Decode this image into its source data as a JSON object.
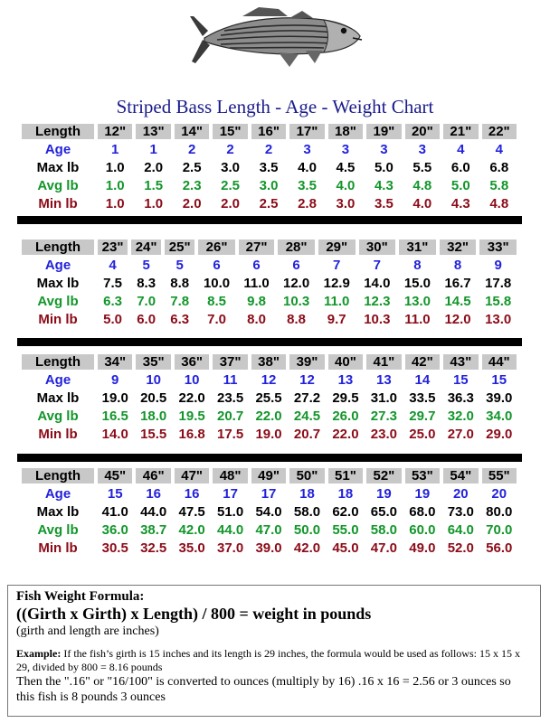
{
  "title": "Striped Bass Length - Age - Weight Chart",
  "row_labels": {
    "length": "Length",
    "age": "Age",
    "max": "Max lb",
    "avg": "Avg lb",
    "min": "Min lb"
  },
  "colors": {
    "age": "#2222dd",
    "max": "#000000",
    "avg": "#12962a",
    "min": "#8b0b18",
    "header_bg": "#c8c8c8"
  },
  "blocks": [
    {
      "length": [
        "12\"",
        "13\"",
        "14\"",
        "15\"",
        "16\"",
        "17\"",
        "18\"",
        "19\"",
        "20\"",
        "21\"",
        "22\""
      ],
      "age": [
        "1",
        "1",
        "2",
        "2",
        "2",
        "3",
        "3",
        "3",
        "3",
        "4",
        "4"
      ],
      "max": [
        "1.0",
        "2.0",
        "2.5",
        "3.0",
        "3.5",
        "4.0",
        "4.5",
        "5.0",
        "5.5",
        "6.0",
        "6.8"
      ],
      "avg": [
        "1.0",
        "1.5",
        "2.3",
        "2.5",
        "3.0",
        "3.5",
        "4.0",
        "4.3",
        "4.8",
        "5.0",
        "5.8"
      ],
      "min": [
        "1.0",
        "1.0",
        "2.0",
        "2.0",
        "2.5",
        "2.8",
        "3.0",
        "3.5",
        "4.0",
        "4.3",
        "4.8"
      ]
    },
    {
      "length": [
        "23\"",
        "24\"",
        "25\"",
        "26\"",
        "27\"",
        "28\"",
        "29\"",
        "30\"",
        "31\"",
        "32\"",
        "33\""
      ],
      "age": [
        "4",
        "5",
        "5",
        "6",
        "6",
        "6",
        "7",
        "7",
        "8",
        "8",
        "9"
      ],
      "max": [
        "7.5",
        "8.3",
        "8.8",
        "10.0",
        "11.0",
        "12.0",
        "12.9",
        "14.0",
        "15.0",
        "16.7",
        "17.8"
      ],
      "avg": [
        "6.3",
        "7.0",
        "7.8",
        "8.5",
        "9.8",
        "10.3",
        "11.0",
        "12.3",
        "13.0",
        "14.5",
        "15.8"
      ],
      "min": [
        "5.0",
        "6.0",
        "6.3",
        "7.0",
        "8.0",
        "8.8",
        "9.7",
        "10.3",
        "11.0",
        "12.0",
        "13.0"
      ]
    },
    {
      "length": [
        "34\"",
        "35\"",
        "36\"",
        "37\"",
        "38\"",
        "39\"",
        "40\"",
        "41\"",
        "42\"",
        "43\"",
        "44\""
      ],
      "age": [
        "9",
        "10",
        "10",
        "11",
        "12",
        "12",
        "13",
        "13",
        "14",
        "15",
        "15"
      ],
      "max": [
        "19.0",
        "20.5",
        "22.0",
        "23.5",
        "25.5",
        "27.2",
        "29.5",
        "31.0",
        "33.5",
        "36.3",
        "39.0"
      ],
      "avg": [
        "16.5",
        "18.0",
        "19.5",
        "20.7",
        "22.0",
        "24.5",
        "26.0",
        "27.3",
        "29.7",
        "32.0",
        "34.0"
      ],
      "min": [
        "14.0",
        "15.5",
        "16.8",
        "17.5",
        "19.0",
        "20.7",
        "22.0",
        "23.0",
        "25.0",
        "27.0",
        "29.0"
      ]
    },
    {
      "length": [
        "45\"",
        "46\"",
        "47\"",
        "48\"",
        "49\"",
        "50\"",
        "51\"",
        "52\"",
        "53\"",
        "54\"",
        "55\""
      ],
      "age": [
        "15",
        "16",
        "16",
        "17",
        "17",
        "18",
        "18",
        "19",
        "19",
        "20",
        "20"
      ],
      "max": [
        "41.0",
        "44.0",
        "47.5",
        "51.0",
        "54.0",
        "58.0",
        "62.0",
        "65.0",
        "68.0",
        "73.0",
        "80.0"
      ],
      "avg": [
        "36.0",
        "38.7",
        "42.0",
        "44.0",
        "47.0",
        "50.0",
        "55.0",
        "58.0",
        "60.0",
        "64.0",
        "70.0"
      ],
      "min": [
        "30.5",
        "32.5",
        "35.0",
        "37.0",
        "39.0",
        "42.0",
        "45.0",
        "47.0",
        "49.0",
        "52.0",
        "56.0"
      ]
    }
  ],
  "formula": {
    "heading": "Fish Weight Formula:",
    "equation": "((Girth x Girth) x Length) / 800 = weight in pounds",
    "note": "(girth and length are inches)",
    "example_label": "Example:",
    "example_text": " If the fish’s girth is 15 inches and its length is 29 inches, the formula would be used as follows: 15 x 15 x 29, divided by 800 = 8.16 pounds",
    "conversion": "Then the \".16\" or \"16/100\" is converted to ounces (multiply by 16)  .16 x 16 = 2.56 or 3 ounces so this fish is 8 pounds 3 ounces"
  }
}
